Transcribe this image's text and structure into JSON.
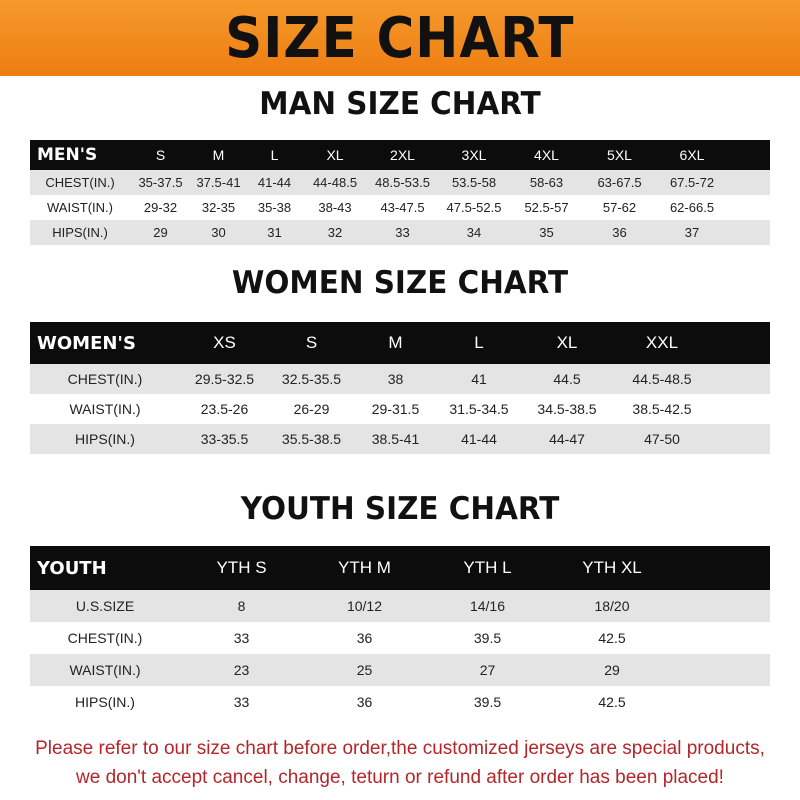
{
  "title": "SIZE CHART",
  "men": {
    "title": "MAN SIZE CHART",
    "header": [
      "MEN'S",
      "S",
      "M",
      "L",
      "XL",
      "2XL",
      "3XL",
      "4XL",
      "5XL",
      "6XL"
    ],
    "rows": [
      [
        "CHEST(IN.)",
        "35-37.5",
        "37.5-41",
        "41-44",
        "44-48.5",
        "48.5-53.5",
        "53.5-58",
        "58-63",
        "63-67.5",
        "67.5-72"
      ],
      [
        "WAIST(IN.)",
        "29-32",
        "32-35",
        "35-38",
        "38-43",
        "43-47.5",
        "47.5-52.5",
        "52.5-57",
        "57-62",
        "62-66.5"
      ],
      [
        "HIPS(IN.)",
        "29",
        "30",
        "31",
        "32",
        "33",
        "34",
        "35",
        "36",
        "37"
      ]
    ]
  },
  "women": {
    "title": "WOMEN SIZE CHART",
    "header": [
      "WOMEN'S",
      "XS",
      "S",
      "M",
      "L",
      "XL",
      "XXL"
    ],
    "rows": [
      [
        "CHEST(IN.)",
        "29.5-32.5",
        "32.5-35.5",
        "38",
        "41",
        "44.5",
        "44.5-48.5"
      ],
      [
        "WAIST(IN.)",
        "23.5-26",
        "26-29",
        "29-31.5",
        "31.5-34.5",
        "34.5-38.5",
        "38.5-42.5"
      ],
      [
        "HIPS(IN.)",
        "33-35.5",
        "35.5-38.5",
        "38.5-41",
        "41-44",
        "44-47",
        "47-50"
      ]
    ]
  },
  "youth": {
    "title": "YOUTH SIZE CHART",
    "header": [
      "YOUTH",
      "YTH S",
      "YTH M",
      "YTH L",
      "YTH XL"
    ],
    "rows": [
      [
        "U.S.SIZE",
        "8",
        "10/12",
        "14/16",
        "18/20"
      ],
      [
        "CHEST(IN.)",
        "33",
        "36",
        "39.5",
        "42.5"
      ],
      [
        "WAIST(IN.)",
        "23",
        "25",
        "27",
        "29"
      ],
      [
        "HIPS(IN.)",
        "33",
        "36",
        "39.5",
        "42.5"
      ]
    ]
  },
  "note": [
    "Please refer to our size chart before order,the customized jerseys are special products,",
    "we don't accept cancel, change, teturn or refund after order has been placed!"
  ],
  "colors": {
    "banner": "#f08a1e",
    "header_row": "#0c0c0c",
    "stripe": "#e4e4e4",
    "note": "#b3262a"
  }
}
